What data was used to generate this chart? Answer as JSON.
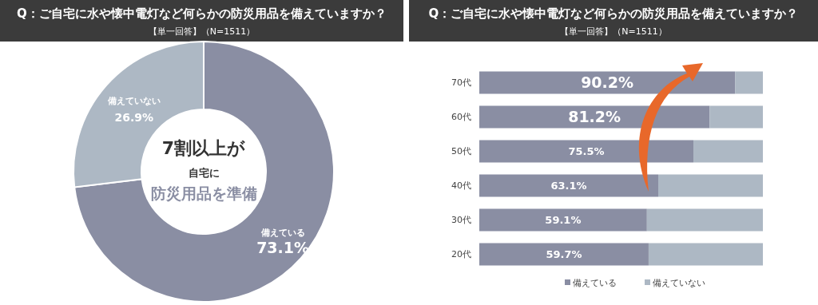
{
  "chart_data": [
    {
      "type": "donut",
      "title": "Q：ご自宅に水や懐中電灯など何らかの防災用品を備えていますか？",
      "subtitle": "【単一回答】（N=1511）",
      "categories": [
        "備えている",
        "備えていない"
      ],
      "values": [
        73.1,
        26.9
      ],
      "colors": [
        "#8a8ea3",
        "#adb8c4"
      ],
      "value_labels": [
        "73.1%",
        "26.9%"
      ],
      "annotations": [
        "7割以上が",
        "自宅に",
        "防災用品を準備"
      ]
    },
    {
      "type": "bar",
      "orientation": "horizontal",
      "stacked": true,
      "xlim": [
        0,
        100
      ],
      "legend": "bottom",
      "title": "Q：ご自宅に水や懐中電灯など何らかの防災用品を備えていますか？",
      "subtitle": "【単一回答】（N=1511）",
      "categories": [
        "70代",
        "60代",
        "50代",
        "40代",
        "30代",
        "20代"
      ],
      "series": [
        {
          "name": "備えている",
          "color": "#8a8ea3",
          "values": [
            90.2,
            81.2,
            75.5,
            63.1,
            59.1,
            59.7
          ],
          "value_labels": [
            "90.2%",
            "81.2%",
            "75.5%",
            "63.1%",
            "59.1%",
            "59.7%"
          ]
        },
        {
          "name": "備えていない",
          "color": "#adb8c4",
          "values": [
            9.8,
            18.8,
            24.5,
            36.9,
            40.9,
            40.3
          ]
        }
      ]
    }
  ]
}
